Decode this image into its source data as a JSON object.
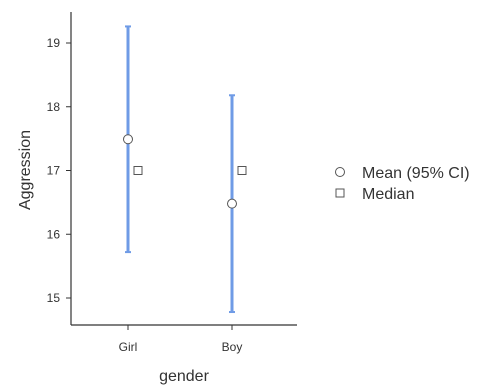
{
  "chart_data": {
    "type": "scatter",
    "xlabel": "gender",
    "ylabel": "Aggression",
    "categories": [
      "Girl",
      "Boy"
    ],
    "ylim": [
      14.6,
      19.5
    ],
    "yticks": [
      15,
      16,
      17,
      18,
      19
    ],
    "series": [
      {
        "name": "Mean (95% CI)",
        "marker": "circle",
        "values": [
          17.49,
          16.48
        ],
        "ci_lower": [
          15.72,
          14.78
        ],
        "ci_upper": [
          19.26,
          18.18
        ]
      },
      {
        "name": "Median",
        "marker": "square",
        "values": [
          17.0,
          17.0
        ]
      }
    ],
    "legend_position": "right",
    "grid": false,
    "colors": {
      "error_bar": "#6f9be6",
      "marker_fill": "#ffffff",
      "marker_stroke": "#555555",
      "axis": "#333333"
    }
  }
}
